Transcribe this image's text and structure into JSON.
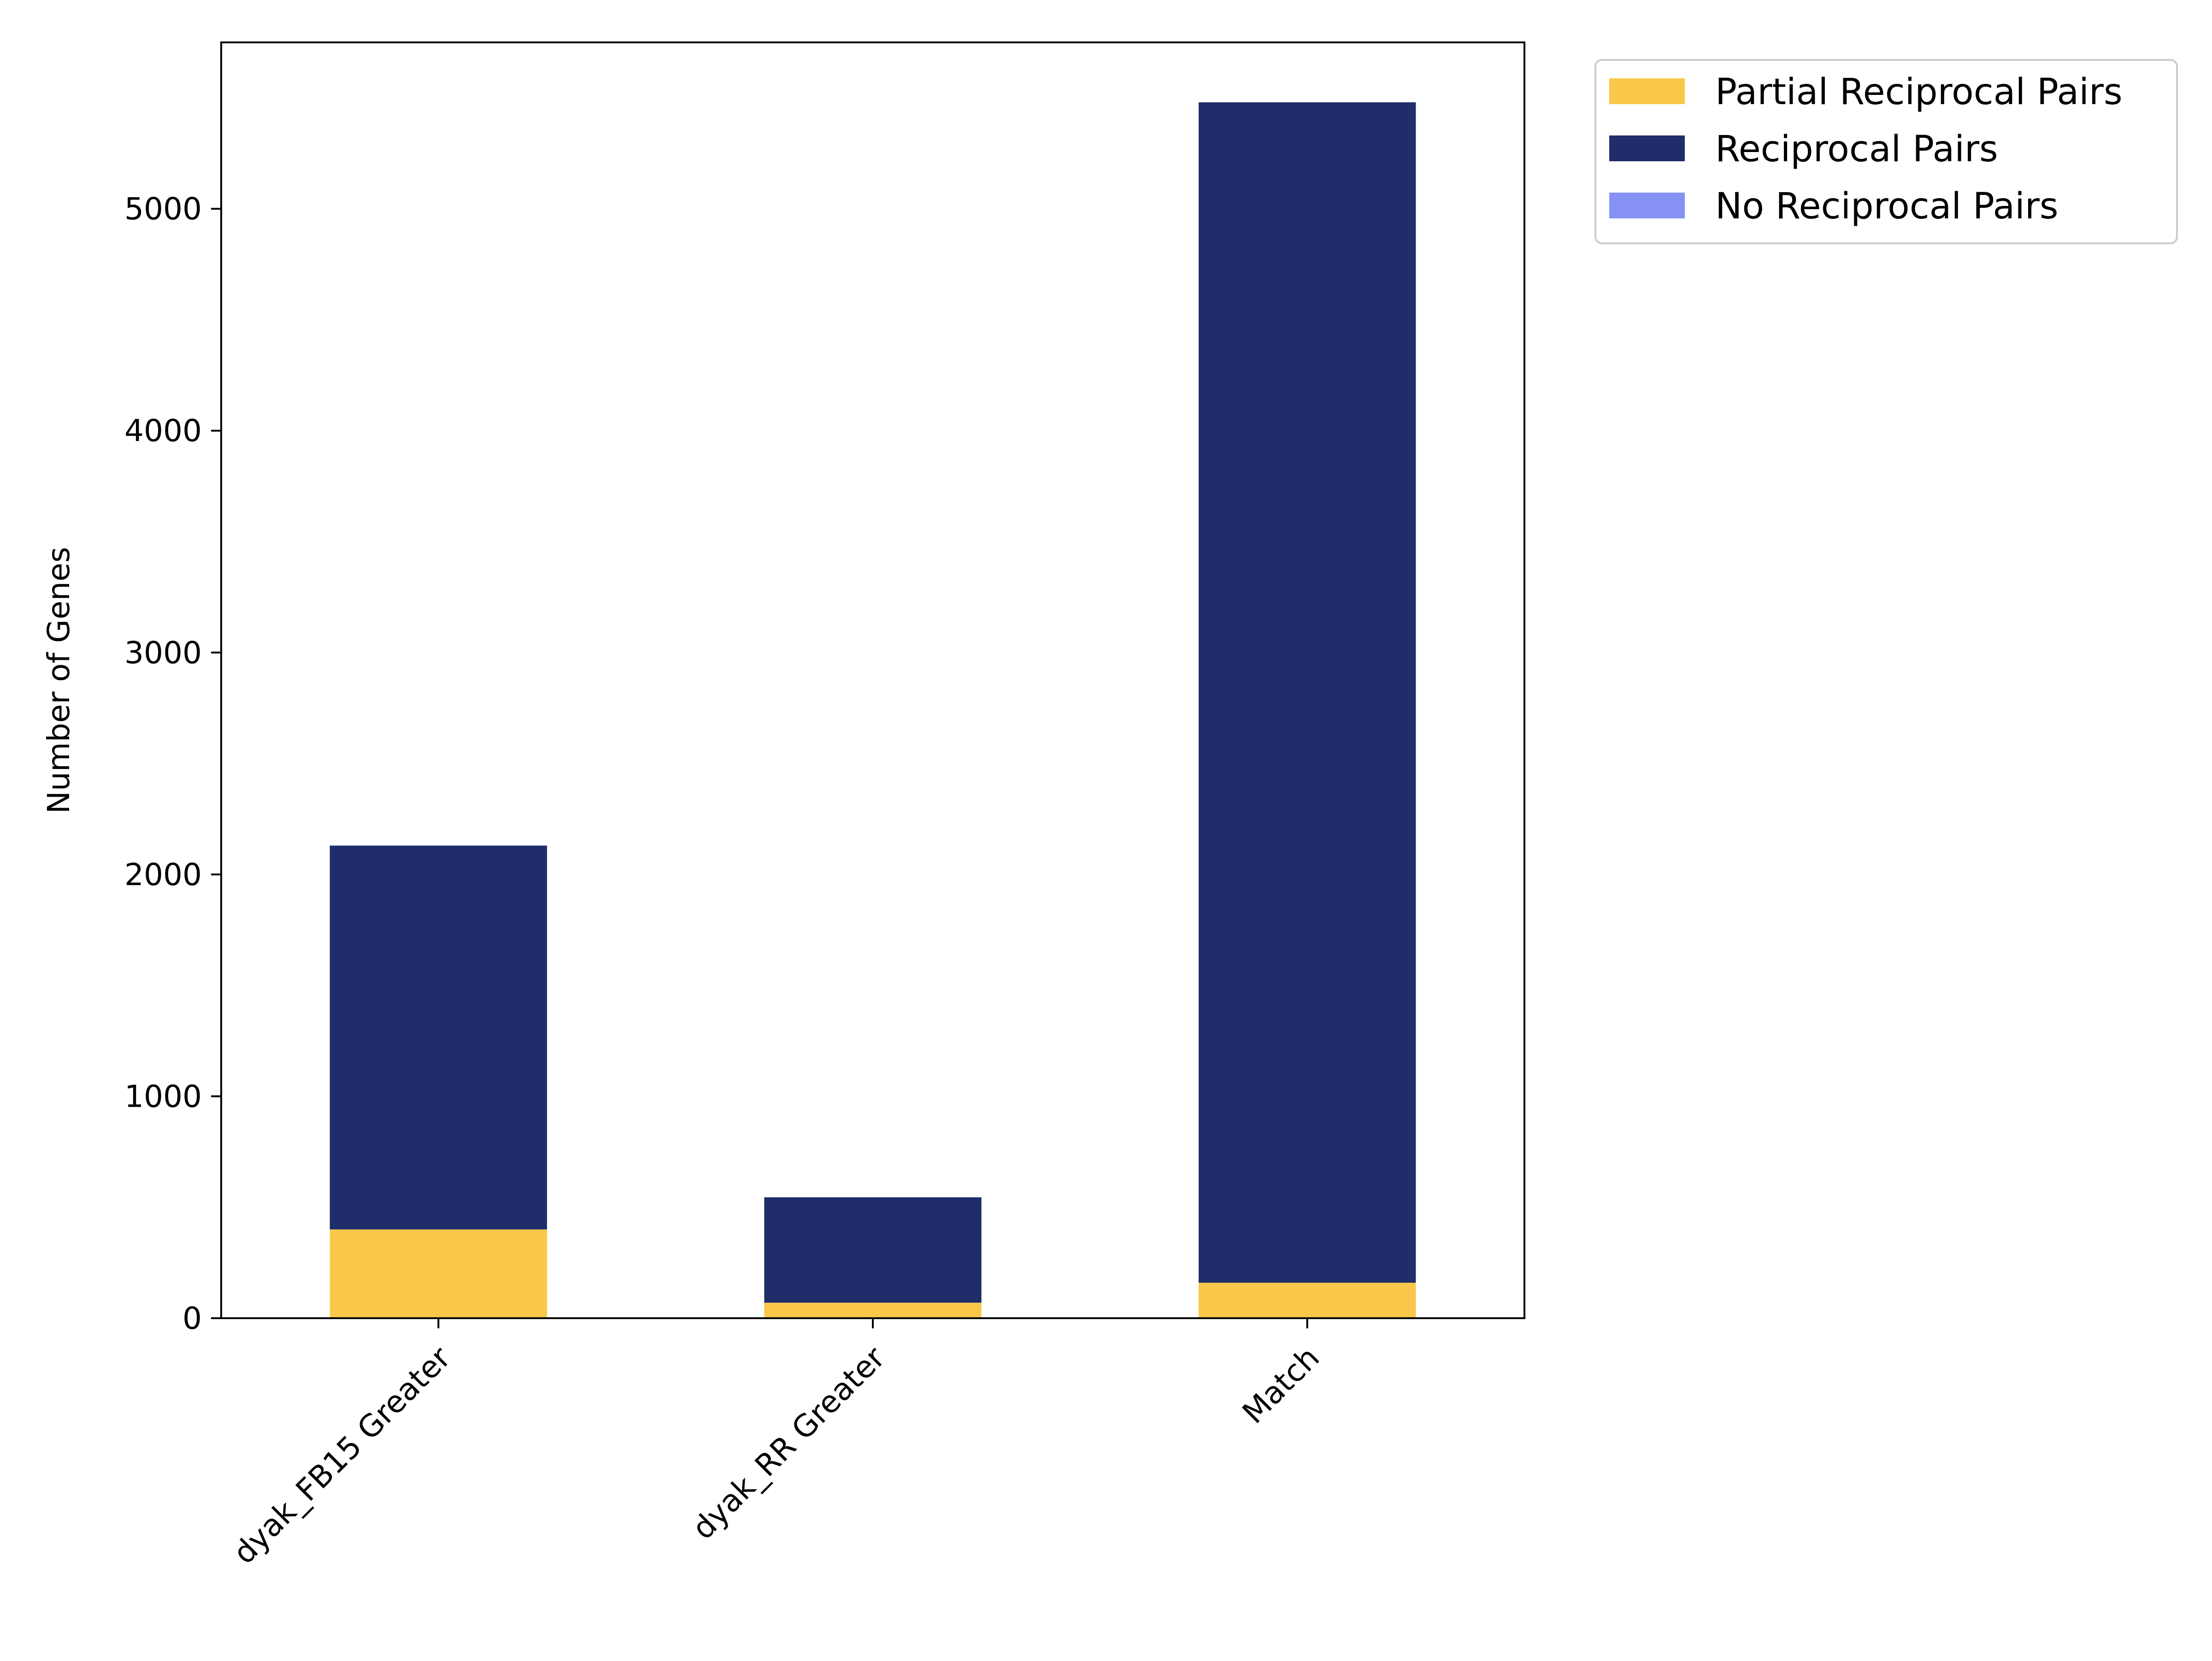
{
  "chart_data": {
    "type": "bar",
    "stacked": true,
    "title": "",
    "xlabel": "",
    "ylabel": "Number of Genes",
    "categories": [
      "dyak_FB15 Greater",
      "dyak_RR Greater",
      "Match"
    ],
    "ylim": [
      0,
      5750
    ],
    "yticks": [
      0,
      1000,
      2000,
      3000,
      4000,
      5000
    ],
    "grid": false,
    "legend_position": "outside-top-right",
    "series": [
      {
        "name": "Partial Reciprocal Pairs",
        "color": "#F9C74A",
        "values": [
          400,
          70,
          160
        ]
      },
      {
        "name": "Reciprocal Pairs",
        "color": "#1F2D6B",
        "values": [
          1730,
          475,
          5320
        ]
      },
      {
        "name": "No Reciprocal Pairs",
        "color": "#8691F4",
        "values": [
          0,
          0,
          0
        ]
      }
    ]
  }
}
